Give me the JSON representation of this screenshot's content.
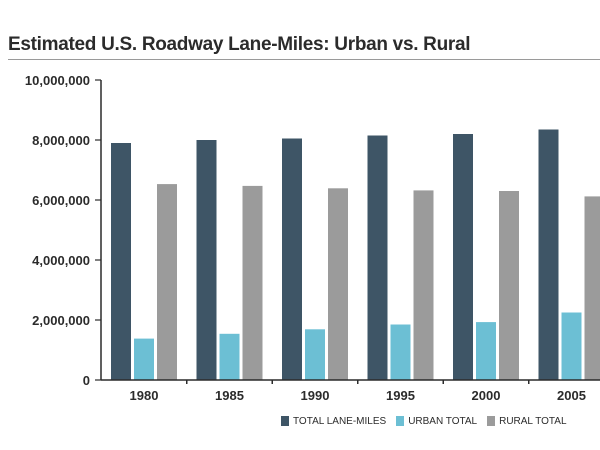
{
  "chart_data": {
    "type": "bar",
    "title": "Estimated U.S. Roadway Lane-Miles: Urban vs. Rural",
    "xlabel": "",
    "ylabel": "",
    "categories": [
      "1980",
      "1985",
      "1990",
      "1995",
      "2000",
      "2005"
    ],
    "ylim": [
      0,
      10000000
    ],
    "yticks": [
      "0",
      "2,000,000",
      "4,000,000",
      "6,000,000",
      "8,000,000",
      "10,000,000"
    ],
    "ytick_values": [
      0,
      2000000,
      4000000,
      6000000,
      8000000,
      10000000
    ],
    "series": [
      {
        "name": "TOTAL LANE-MILES",
        "color": "#3e5566",
        "values": [
          7900000,
          8000000,
          8050000,
          8150000,
          8200000,
          8350000
        ]
      },
      {
        "name": "URBAN TOTAL",
        "color": "#6cbfd4",
        "values": [
          1380000,
          1540000,
          1690000,
          1850000,
          1930000,
          2250000
        ]
      },
      {
        "name": "RURAL TOTAL",
        "color": "#9b9b9b",
        "values": [
          6530000,
          6470000,
          6390000,
          6320000,
          6300000,
          6120000
        ]
      }
    ],
    "legend_position": "bottom-right"
  }
}
